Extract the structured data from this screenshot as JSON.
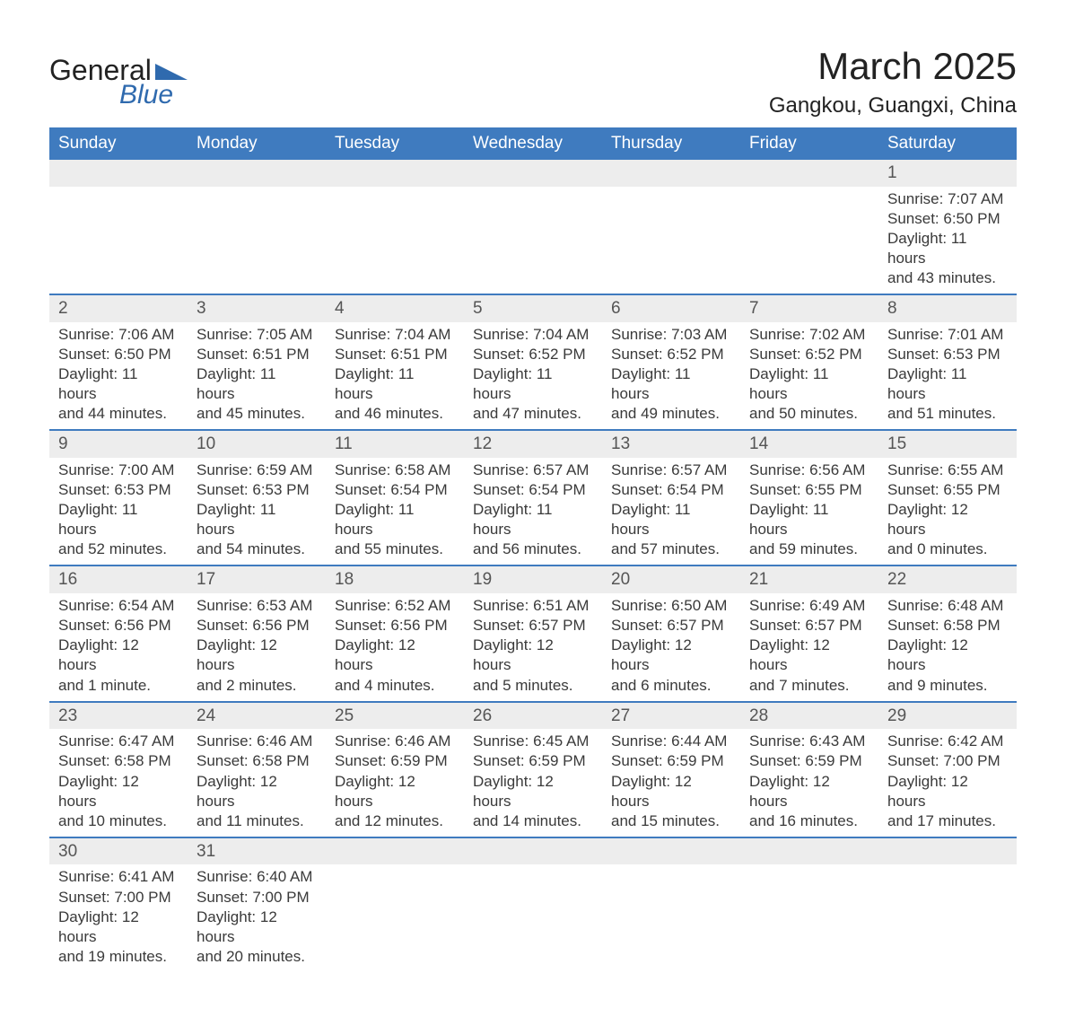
{
  "logo": {
    "text1": "General",
    "text2": "Blue",
    "triangle_color": "#2f6aae"
  },
  "title": "March 2025",
  "location": "Gangkou, Guangxi, China",
  "colors": {
    "header_bg": "#3f7bbf",
    "daynum_bg": "#ededed",
    "border": "#3f7bbf"
  },
  "day_names": [
    "Sunday",
    "Monday",
    "Tuesday",
    "Wednesday",
    "Thursday",
    "Friday",
    "Saturday"
  ],
  "weeks": [
    [
      null,
      null,
      null,
      null,
      null,
      null,
      {
        "n": "1",
        "sr": "Sunrise: 7:07 AM",
        "ss": "Sunset: 6:50 PM",
        "d1": "Daylight: 11 hours",
        "d2": "and 43 minutes."
      }
    ],
    [
      {
        "n": "2",
        "sr": "Sunrise: 7:06 AM",
        "ss": "Sunset: 6:50 PM",
        "d1": "Daylight: 11 hours",
        "d2": "and 44 minutes."
      },
      {
        "n": "3",
        "sr": "Sunrise: 7:05 AM",
        "ss": "Sunset: 6:51 PM",
        "d1": "Daylight: 11 hours",
        "d2": "and 45 minutes."
      },
      {
        "n": "4",
        "sr": "Sunrise: 7:04 AM",
        "ss": "Sunset: 6:51 PM",
        "d1": "Daylight: 11 hours",
        "d2": "and 46 minutes."
      },
      {
        "n": "5",
        "sr": "Sunrise: 7:04 AM",
        "ss": "Sunset: 6:52 PM",
        "d1": "Daylight: 11 hours",
        "d2": "and 47 minutes."
      },
      {
        "n": "6",
        "sr": "Sunrise: 7:03 AM",
        "ss": "Sunset: 6:52 PM",
        "d1": "Daylight: 11 hours",
        "d2": "and 49 minutes."
      },
      {
        "n": "7",
        "sr": "Sunrise: 7:02 AM",
        "ss": "Sunset: 6:52 PM",
        "d1": "Daylight: 11 hours",
        "d2": "and 50 minutes."
      },
      {
        "n": "8",
        "sr": "Sunrise: 7:01 AM",
        "ss": "Sunset: 6:53 PM",
        "d1": "Daylight: 11 hours",
        "d2": "and 51 minutes."
      }
    ],
    [
      {
        "n": "9",
        "sr": "Sunrise: 7:00 AM",
        "ss": "Sunset: 6:53 PM",
        "d1": "Daylight: 11 hours",
        "d2": "and 52 minutes."
      },
      {
        "n": "10",
        "sr": "Sunrise: 6:59 AM",
        "ss": "Sunset: 6:53 PM",
        "d1": "Daylight: 11 hours",
        "d2": "and 54 minutes."
      },
      {
        "n": "11",
        "sr": "Sunrise: 6:58 AM",
        "ss": "Sunset: 6:54 PM",
        "d1": "Daylight: 11 hours",
        "d2": "and 55 minutes."
      },
      {
        "n": "12",
        "sr": "Sunrise: 6:57 AM",
        "ss": "Sunset: 6:54 PM",
        "d1": "Daylight: 11 hours",
        "d2": "and 56 minutes."
      },
      {
        "n": "13",
        "sr": "Sunrise: 6:57 AM",
        "ss": "Sunset: 6:54 PM",
        "d1": "Daylight: 11 hours",
        "d2": "and 57 minutes."
      },
      {
        "n": "14",
        "sr": "Sunrise: 6:56 AM",
        "ss": "Sunset: 6:55 PM",
        "d1": "Daylight: 11 hours",
        "d2": "and 59 minutes."
      },
      {
        "n": "15",
        "sr": "Sunrise: 6:55 AM",
        "ss": "Sunset: 6:55 PM",
        "d1": "Daylight: 12 hours",
        "d2": "and 0 minutes."
      }
    ],
    [
      {
        "n": "16",
        "sr": "Sunrise: 6:54 AM",
        "ss": "Sunset: 6:56 PM",
        "d1": "Daylight: 12 hours",
        "d2": "and 1 minute."
      },
      {
        "n": "17",
        "sr": "Sunrise: 6:53 AM",
        "ss": "Sunset: 6:56 PM",
        "d1": "Daylight: 12 hours",
        "d2": "and 2 minutes."
      },
      {
        "n": "18",
        "sr": "Sunrise: 6:52 AM",
        "ss": "Sunset: 6:56 PM",
        "d1": "Daylight: 12 hours",
        "d2": "and 4 minutes."
      },
      {
        "n": "19",
        "sr": "Sunrise: 6:51 AM",
        "ss": "Sunset: 6:57 PM",
        "d1": "Daylight: 12 hours",
        "d2": "and 5 minutes."
      },
      {
        "n": "20",
        "sr": "Sunrise: 6:50 AM",
        "ss": "Sunset: 6:57 PM",
        "d1": "Daylight: 12 hours",
        "d2": "and 6 minutes."
      },
      {
        "n": "21",
        "sr": "Sunrise: 6:49 AM",
        "ss": "Sunset: 6:57 PM",
        "d1": "Daylight: 12 hours",
        "d2": "and 7 minutes."
      },
      {
        "n": "22",
        "sr": "Sunrise: 6:48 AM",
        "ss": "Sunset: 6:58 PM",
        "d1": "Daylight: 12 hours",
        "d2": "and 9 minutes."
      }
    ],
    [
      {
        "n": "23",
        "sr": "Sunrise: 6:47 AM",
        "ss": "Sunset: 6:58 PM",
        "d1": "Daylight: 12 hours",
        "d2": "and 10 minutes."
      },
      {
        "n": "24",
        "sr": "Sunrise: 6:46 AM",
        "ss": "Sunset: 6:58 PM",
        "d1": "Daylight: 12 hours",
        "d2": "and 11 minutes."
      },
      {
        "n": "25",
        "sr": "Sunrise: 6:46 AM",
        "ss": "Sunset: 6:59 PM",
        "d1": "Daylight: 12 hours",
        "d2": "and 12 minutes."
      },
      {
        "n": "26",
        "sr": "Sunrise: 6:45 AM",
        "ss": "Sunset: 6:59 PM",
        "d1": "Daylight: 12 hours",
        "d2": "and 14 minutes."
      },
      {
        "n": "27",
        "sr": "Sunrise: 6:44 AM",
        "ss": "Sunset: 6:59 PM",
        "d1": "Daylight: 12 hours",
        "d2": "and 15 minutes."
      },
      {
        "n": "28",
        "sr": "Sunrise: 6:43 AM",
        "ss": "Sunset: 6:59 PM",
        "d1": "Daylight: 12 hours",
        "d2": "and 16 minutes."
      },
      {
        "n": "29",
        "sr": "Sunrise: 6:42 AM",
        "ss": "Sunset: 7:00 PM",
        "d1": "Daylight: 12 hours",
        "d2": "and 17 minutes."
      }
    ],
    [
      {
        "n": "30",
        "sr": "Sunrise: 6:41 AM",
        "ss": "Sunset: 7:00 PM",
        "d1": "Daylight: 12 hours",
        "d2": "and 19 minutes."
      },
      {
        "n": "31",
        "sr": "Sunrise: 6:40 AM",
        "ss": "Sunset: 7:00 PM",
        "d1": "Daylight: 12 hours",
        "d2": "and 20 minutes."
      },
      null,
      null,
      null,
      null,
      null
    ]
  ]
}
